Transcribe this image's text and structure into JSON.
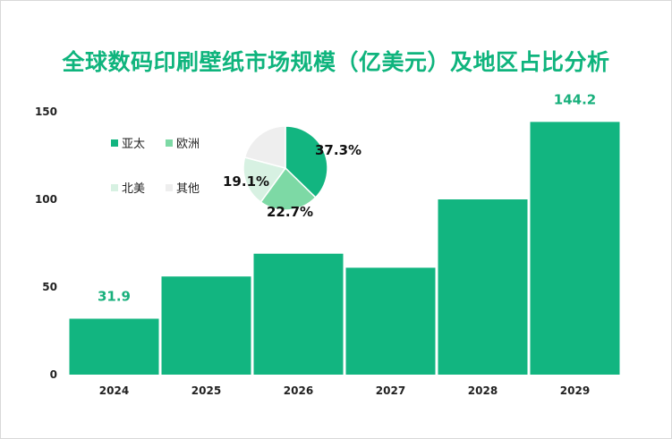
{
  "chart_data": [
    {
      "type": "bar",
      "title": "全球数码印刷壁纸市场规模（亿美元）及地区占比分析",
      "categories": [
        "2024",
        "2025",
        "2026",
        "2027",
        "2028",
        "2029"
      ],
      "values": [
        31.9,
        56,
        69,
        61,
        100,
        144.2
      ],
      "data_labels": [
        {
          "category": "2024",
          "text": "31.9"
        },
        {
          "category": "2029",
          "text": "144.2"
        }
      ],
      "ylim": [
        0,
        150
      ],
      "yticks": [
        0,
        50,
        100,
        150
      ],
      "xlabel": "",
      "ylabel": "",
      "bar_color": "#12b580"
    },
    {
      "type": "pie",
      "slices": [
        {
          "name": "亚太",
          "value": 37.3,
          "label": "37.3%",
          "color": "#12b580"
        },
        {
          "name": "欧洲",
          "value": 22.7,
          "label": "22.7%",
          "color": "#7dd9a5"
        },
        {
          "name": "北美",
          "value": 19.1,
          "label": "19.1%",
          "color": "#d7f1e2"
        },
        {
          "name": "其他",
          "value": 20.9,
          "label": "",
          "color": "#eeeeee"
        }
      ],
      "legend": [
        "亚太",
        "欧洲",
        "北美",
        "其他"
      ]
    }
  ]
}
